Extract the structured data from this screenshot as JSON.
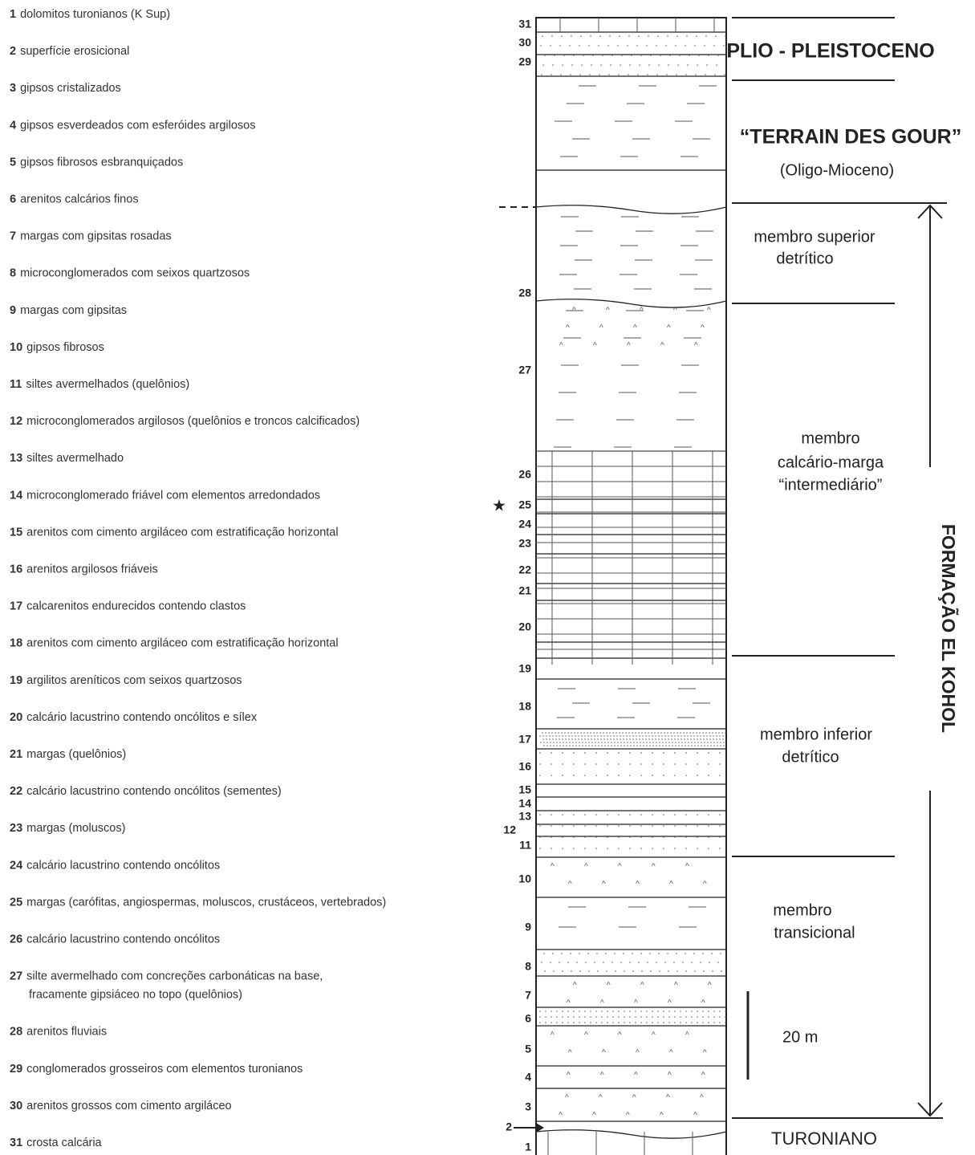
{
  "legend": [
    {
      "number": "1",
      "lines": [
        "dolomitos turonianos (K Sup)"
      ]
    },
    {
      "number": "2",
      "lines": [
        "superfície erosicional"
      ]
    },
    {
      "number": "3",
      "lines": [
        "gipsos cristalizados"
      ]
    },
    {
      "number": "4",
      "lines": [
        "gipsos esverdeados com  esferóides argilosos"
      ]
    },
    {
      "number": "5",
      "lines": [
        "gipsos fibrosos esbranquiçados"
      ]
    },
    {
      "number": "6",
      "lines": [
        "arenitos calcários finos"
      ]
    },
    {
      "number": "7",
      "lines": [
        "margas com gipsitas rosadas"
      ]
    },
    {
      "number": "8",
      "lines": [
        "microconglomerados com seixos quartzosos"
      ]
    },
    {
      "number": "9",
      "lines": [
        "margas com gipsitas"
      ]
    },
    {
      "number": "10",
      "lines": [
        "gipsos fibrosos"
      ]
    },
    {
      "number": "11",
      "lines": [
        "siltes avermelhados (quelônios)"
      ]
    },
    {
      "number": "12",
      "lines": [
        "microconglomerados argilosos (quelônios e troncos calcificados)"
      ]
    },
    {
      "number": "13",
      "lines": [
        "siltes avermelhado"
      ]
    },
    {
      "number": "14",
      "lines": [
        "microconglomerado friável com elementos arredondados"
      ]
    },
    {
      "number": "15",
      "lines": [
        "arenitos com cimento argiláceo com estratificação horizontal"
      ]
    },
    {
      "number": "16",
      "lines": [
        "arenitos argilosos friáveis"
      ]
    },
    {
      "number": "17",
      "lines": [
        "calcarenitos endurecidos contendo clastos"
      ]
    },
    {
      "number": "18",
      "lines": [
        "arenitos com cimento argiláceo com estratificação horizontal"
      ]
    },
    {
      "number": "19",
      "lines": [
        "argilitos areníticos com seixos quartzosos"
      ]
    },
    {
      "number": "20",
      "lines": [
        "calcário lacustrino contendo oncólitos e sílex"
      ]
    },
    {
      "number": "21",
      "lines": [
        "margas (quelônios)"
      ]
    },
    {
      "number": "22",
      "lines": [
        "calcário lacustrino contendo oncólitos (sementes)"
      ]
    },
    {
      "number": "23",
      "lines": [
        "margas (moluscos)"
      ]
    },
    {
      "number": "24",
      "lines": [
        "calcário lacustrino contendo oncólitos"
      ]
    },
    {
      "number": "25",
      "lines": [
        "margas (carófitas, angiospermas, moluscos, crustáceos, vertebrados)"
      ]
    },
    {
      "number": "26",
      "lines": [
        "calcário lacustrino contendo oncólitos"
      ]
    },
    {
      "number": "27",
      "lines": [
        "silte avermelhado com concreções carbonáticas na base,",
        "fracamente gipsiáceo no topo (quelônios)"
      ]
    },
    {
      "number": "28",
      "lines": [
        "arenitos fluviais"
      ]
    },
    {
      "number": "29",
      "lines": [
        "conglomerados grosseiros com elementos turonianos"
      ]
    },
    {
      "number": "30",
      "lines": [
        "arenitos grossos com cimento argiláceo"
      ]
    },
    {
      "number": "31",
      "lines": [
        "crosta calcária"
      ]
    }
  ],
  "column_labels": [
    "31",
    "30",
    "29",
    "28",
    "27",
    "26",
    "25",
    "24",
    "23",
    "22",
    "21",
    "20",
    "19",
    "18",
    "17",
    "16",
    "15",
    "14",
    "13",
    "12",
    "11",
    "10",
    "9",
    "8",
    "7",
    "6",
    "5",
    "4",
    "3",
    "2",
    "1"
  ],
  "units": {
    "plio": "PLIO - PLEISTOCENO",
    "terrain": "“TERRAIN DES GOUR”",
    "terrain_age": "(Oligo-Mioceno)",
    "superior": [
      "membro superior",
      "detrítico"
    ],
    "intermediario": [
      "membro",
      "calcário-marga",
      "“intermediário”"
    ],
    "inferior": [
      "membro inferior",
      "detrítico"
    ],
    "transicional": [
      "membro",
      "transicional"
    ],
    "turoniano": "TURONIANO"
  },
  "formation": "FORMAÇÃO  EL  KOHOL",
  "scale": "20 m"
}
